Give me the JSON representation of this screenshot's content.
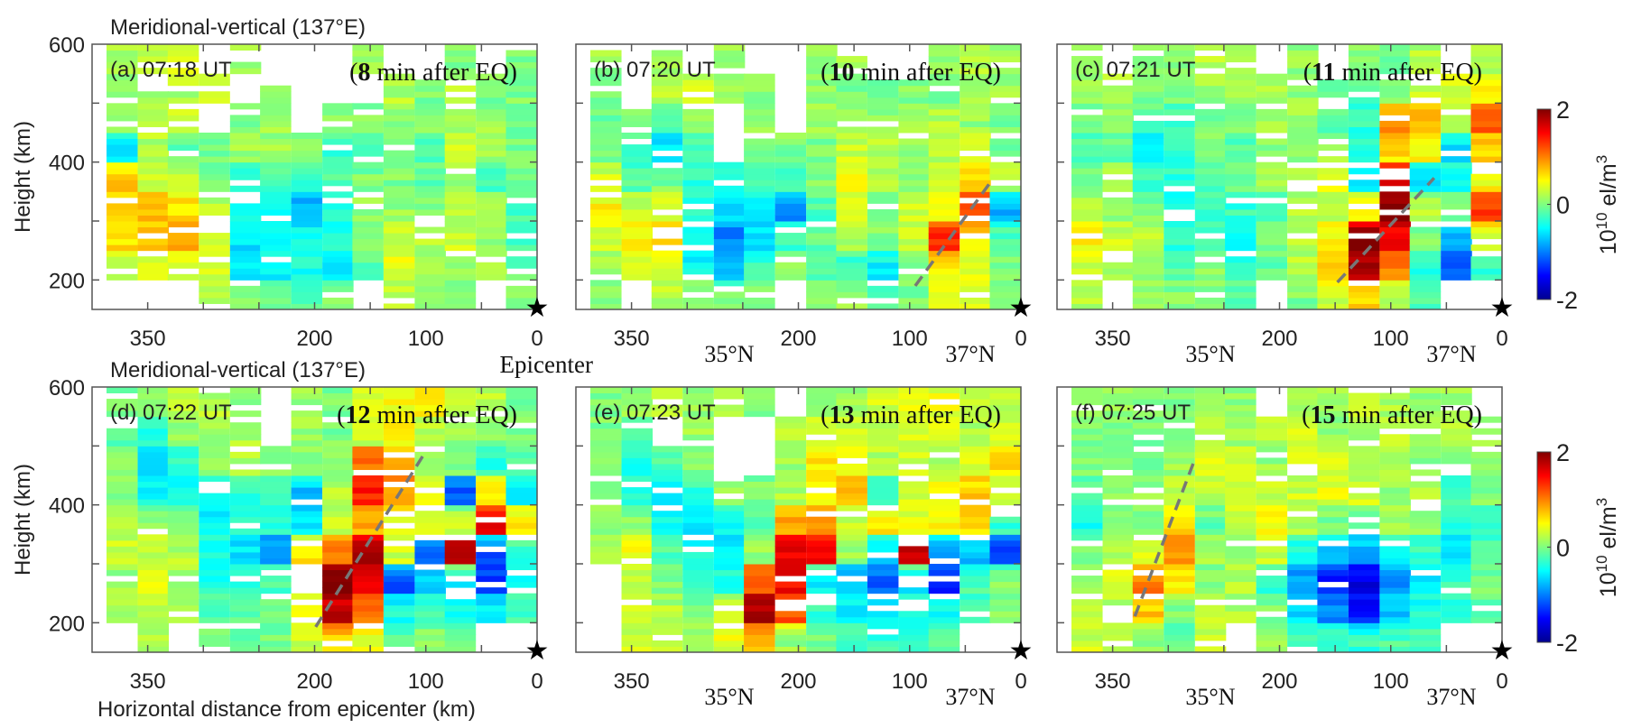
{
  "figure": {
    "row_titles": [
      "Meridional-vertical (137°E)",
      "Meridional-vertical (137°E)"
    ],
    "ylabel": "Height (km)",
    "xlabel": "Horizontal distance from epicenter (km)",
    "epicenter_label": "Epicenter",
    "lat_labels": [
      "35°N",
      "37°N"
    ],
    "colorbar": {
      "ticks": [
        "2",
        "0",
        "-2"
      ],
      "unit_base": "10",
      "unit_exp": "10",
      "unit_text": " el/m",
      "unit_sup": "3",
      "range": [
        -2,
        2
      ],
      "colormap": "jet"
    },
    "x_tick_labels": [
      "350",
      "200",
      "100",
      "0"
    ],
    "y_tick_labels": [
      "600",
      "400",
      "200"
    ],
    "epicenter_marker": "star-icon"
  },
  "chart_data": [
    {
      "type": "heatmap",
      "panel": "(a)",
      "time": "07:18 UT",
      "elapsed_bold": "8",
      "elapsed_rest": " min after EQ)",
      "xlim": [
        400,
        0
      ],
      "ylim": [
        150,
        600
      ],
      "x_bin_starts_km": [
        387,
        359,
        332,
        304,
        276,
        249,
        221,
        193,
        166,
        138,
        110,
        83,
        55,
        28
      ],
      "y_bins_km": [
        150,
        200,
        250,
        300,
        350,
        400,
        450,
        500,
        550
      ],
      "values": [
        [
          null,
          null,
          null,
          0.2,
          0,
          -0.1,
          -0.2,
          0,
          null,
          0.2,
          0.1,
          0,
          null,
          0
        ],
        [
          0.3,
          0.3,
          0.4,
          0.3,
          -0.5,
          -0.5,
          -0.4,
          -0.6,
          -0.2,
          0.4,
          0.2,
          0.1,
          0.1,
          -0.1
        ],
        [
          0.6,
          0.7,
          0.9,
          0.4,
          -0.6,
          -0.5,
          -0.5,
          -0.4,
          0,
          0.3,
          0.2,
          0.3,
          0.1,
          -0.2
        ],
        [
          0.6,
          0.8,
          0.6,
          0.2,
          -0.4,
          -0.5,
          -0.8,
          -0.3,
          0.1,
          0.1,
          0,
          0.2,
          0.1,
          -0.2
        ],
        [
          0.7,
          0.3,
          0.3,
          0,
          -0.3,
          -0.2,
          -0.4,
          -0.2,
          0,
          0,
          -0.1,
          0.1,
          -0.2,
          -0.1
        ],
        [
          -0.5,
          0.2,
          -0.1,
          0,
          0.1,
          0.1,
          0.1,
          -0.3,
          -0.3,
          0.1,
          -0.2,
          0.3,
          0.1,
          0
        ],
        [
          0,
          0.3,
          0.3,
          null,
          0,
          0.1,
          null,
          0.1,
          0,
          0.1,
          0,
          0.1,
          0.1,
          0
        ],
        [
          0,
          0.2,
          0.2,
          0.3,
          null,
          0,
          null,
          null,
          null,
          0.2,
          0,
          0.2,
          0,
          0
        ],
        [
          0.2,
          0.2,
          0.3,
          null,
          0.1,
          null,
          null,
          null,
          0.1,
          null,
          null,
          0,
          null,
          0
        ]
      ],
      "dashed_line": null
    },
    {
      "type": "heatmap",
      "panel": "(b)",
      "time": "07:20 UT",
      "elapsed_bold": "10",
      "elapsed_rest": " min after EQ)",
      "xlim": [
        400,
        0
      ],
      "ylim": [
        150,
        600
      ],
      "values": [
        [
          0.1,
          null,
          0.2,
          0.1,
          0,
          0,
          null,
          0,
          0.1,
          -0.1,
          0,
          0.3,
          0.3,
          0
        ],
        [
          0.1,
          0.4,
          0.4,
          -0.5,
          -0.7,
          -0.3,
          0,
          -0.2,
          -0.3,
          -0.5,
          0,
          0.5,
          0.4,
          0
        ],
        [
          0.3,
          0.5,
          0.7,
          -0.4,
          -1.0,
          -0.6,
          -0.3,
          -0.1,
          0.2,
          0,
          0.3,
          1.3,
          0.6,
          -0.2
        ],
        [
          0.5,
          0.3,
          0.4,
          -0.3,
          -0.6,
          -0.5,
          -0.9,
          -0.2,
          0.3,
          0,
          0.3,
          0.5,
          1.3,
          -0.8
        ],
        [
          0.3,
          -0.2,
          0,
          -0.3,
          -0.4,
          -0.2,
          -0.3,
          0,
          0.5,
          0.2,
          0,
          0.4,
          0.6,
          0.2
        ],
        [
          0,
          -0.3,
          -0.6,
          -0.2,
          null,
          -0.1,
          0,
          0,
          0.3,
          0.2,
          0.1,
          0.2,
          0.3,
          0
        ],
        [
          -0.1,
          0,
          -0.1,
          0.1,
          null,
          0.1,
          null,
          0.1,
          0.1,
          0.1,
          0.1,
          0.2,
          0.1,
          0
        ],
        [
          0,
          null,
          0.2,
          0.3,
          0.1,
          0,
          null,
          0.1,
          0,
          0,
          0,
          0,
          0.1,
          0.1
        ],
        [
          0.1,
          null,
          0.2,
          null,
          0.1,
          null,
          null,
          0.1,
          0.1,
          null,
          null,
          0.1,
          0.2,
          0.1
        ]
      ],
      "dashed_line": [
        [
          95,
          190
        ],
        [
          25,
          372
        ]
      ]
    },
    {
      "type": "heatmap",
      "panel": "(c)",
      "time": "07:21 UT",
      "elapsed_bold": "11",
      "elapsed_rest": " min after EQ)",
      "xlim": [
        400,
        0
      ],
      "ylim": [
        150,
        600
      ],
      "values": [
        [
          0.2,
          null,
          0.1,
          0,
          0,
          -0.1,
          null,
          0,
          0.3,
          0.7,
          0.2,
          -0.2,
          null,
          null
        ],
        [
          0.3,
          0.2,
          0.1,
          -0.2,
          0.1,
          -0.3,
          -0.1,
          0.2,
          0.8,
          1.8,
          1.0,
          -0.4,
          -1.2,
          -0.3
        ],
        [
          0.5,
          0.3,
          0.2,
          -0.3,
          -0.2,
          -0.5,
          0,
          0.2,
          0.5,
          2.0,
          1.5,
          0,
          -0.8,
          0.3
        ],
        [
          0.2,
          0.1,
          0,
          -0.5,
          -0.3,
          -0.3,
          -0.2,
          0.2,
          0.3,
          0.6,
          2.0,
          0.3,
          0,
          1.3
        ],
        [
          0,
          0.2,
          -0.3,
          -0.3,
          -0.2,
          0,
          0.1,
          0.1,
          0.4,
          -0.6,
          1.6,
          -0.6,
          -0.4,
          0.5
        ],
        [
          -0.2,
          -0.1,
          -0.5,
          -0.3,
          0,
          -0.2,
          0,
          0.1,
          0.1,
          -0.3,
          0.6,
          0.5,
          -0.6,
          0.7
        ],
        [
          0,
          0,
          -0.2,
          -0.2,
          0,
          0,
          0.1,
          0.1,
          -0.1,
          -0.3,
          1.0,
          0.8,
          0.3,
          1.1
        ],
        [
          0.1,
          0.2,
          0,
          0,
          0.1,
          0.1,
          0.2,
          0.1,
          0,
          -0.2,
          0.1,
          0.3,
          0.3,
          0.5
        ],
        [
          0.1,
          null,
          0,
          0.1,
          0.2,
          0.2,
          null,
          0.1,
          null,
          0,
          0,
          0.2,
          null,
          0.2
        ]
      ],
      "dashed_line": [
        [
          148,
          196
        ],
        [
          61,
          373
        ]
      ]
    },
    {
      "type": "heatmap",
      "panel": "(d)",
      "time": "07:22 UT",
      "elapsed_bold": "12",
      "elapsed_rest": " min after EQ)",
      "xlim": [
        400,
        0
      ],
      "ylim": [
        150,
        600
      ],
      "values": [
        [
          null,
          0.2,
          null,
          0.1,
          -0.1,
          0,
          0.3,
          0.7,
          0.4,
          -0.2,
          0,
          -0.1,
          null,
          null
        ],
        [
          0.2,
          0.3,
          0.2,
          -0.2,
          -0.1,
          -0.1,
          0.5,
          1.7,
          1.0,
          -0.4,
          -0.2,
          -0.5,
          -0.6,
          -0.2
        ],
        [
          0.1,
          0.4,
          0.1,
          -0.4,
          -0.3,
          -0.2,
          null,
          2.0,
          1.5,
          -1.2,
          -0.6,
          -0.7,
          -1.3,
          -0.5
        ],
        [
          0.3,
          0.3,
          0.2,
          -0.4,
          -0.6,
          -1.0,
          0.6,
          1.0,
          1.8,
          0.3,
          -1.0,
          1.9,
          -1.2,
          -0.3
        ],
        [
          0.2,
          0.1,
          0,
          -0.5,
          -0.4,
          -0.3,
          -0.6,
          0.3,
          0.8,
          0.5,
          0.3,
          0.3,
          1.5,
          0.6
        ],
        [
          0,
          -0.5,
          -0.4,
          -0.4,
          -0.3,
          -0.2,
          -0.7,
          0.2,
          1.4,
          0.9,
          0.4,
          -1.2,
          0.6,
          -0.6
        ],
        [
          0,
          -0.6,
          -0.3,
          0.1,
          0.2,
          0.1,
          0,
          0.1,
          1.1,
          0.8,
          0.2,
          0,
          -0.3,
          -0.1
        ],
        [
          -0.1,
          -0.3,
          0.1,
          0.1,
          0.2,
          null,
          0.1,
          0,
          0.3,
          0.5,
          0.2,
          0.1,
          0,
          0
        ],
        [
          0,
          0,
          0.2,
          0.2,
          0,
          null,
          0.1,
          0,
          0.3,
          0.5,
          0.6,
          0.3,
          0.2,
          0
        ]
      ],
      "dashed_line": [
        [
          199,
          193
        ],
        [
          100,
          491
        ]
      ]
    },
    {
      "type": "heatmap",
      "panel": "(e)",
      "time": "07:23 UT",
      "elapsed_bold": "13",
      "elapsed_rest": " min after EQ)",
      "xlim": [
        400,
        0
      ],
      "ylim": [
        150,
        600
      ],
      "values": [
        [
          null,
          0.3,
          0.3,
          0.2,
          0.4,
          0.7,
          0.1,
          0,
          -0.2,
          -0.3,
          -0.3,
          -0.2,
          null,
          null
        ],
        [
          null,
          0.4,
          0.2,
          0,
          0.4,
          1.8,
          1.2,
          -0.3,
          -0.5,
          -0.6,
          -0.4,
          -0.5,
          -0.3,
          0
        ],
        [
          null,
          0.3,
          0,
          -0.3,
          -0.4,
          1.2,
          1.5,
          -0.5,
          -0.8,
          -1.1,
          -0.7,
          -1.3,
          -0.2,
          0
        ],
        [
          0.2,
          0.5,
          -0.2,
          -0.4,
          -0.6,
          0.1,
          1.6,
          1.5,
          0.1,
          -0.6,
          1.7,
          -0.8,
          -0.7,
          -1.2
        ],
        [
          0.1,
          0,
          -0.4,
          -0.6,
          -0.4,
          -0.2,
          0.8,
          0.9,
          0.3,
          0.6,
          0.4,
          0.5,
          0.6,
          -0.3
        ],
        [
          0,
          -0.4,
          -0.5,
          -0.3,
          0.1,
          0,
          0.2,
          0.5,
          0.8,
          -0.3,
          0.3,
          0.5,
          0.7,
          0.2
        ],
        [
          0.1,
          -0.4,
          -0.2,
          0,
          null,
          null,
          0.1,
          0.6,
          0.4,
          0.2,
          0.3,
          0.2,
          0.4,
          0.6
        ],
        [
          0,
          -0.2,
          null,
          0.1,
          null,
          null,
          0.2,
          0.3,
          0.3,
          0.3,
          0.3,
          0.3,
          0.2,
          0.3
        ],
        [
          0,
          0.1,
          0.2,
          0.1,
          0.2,
          0,
          null,
          0.1,
          0.1,
          0.3,
          0.4,
          0.4,
          0.2,
          0.2
        ]
      ],
      "dashed_line": null
    },
    {
      "type": "heatmap",
      "panel": "(f)",
      "time": "07:25 UT",
      "elapsed_bold": "15",
      "elapsed_rest": " min after EQ)",
      "xlim": [
        400,
        0
      ],
      "ylim": [
        150,
        600
      ],
      "values": [
        [
          0.3,
          0.3,
          0.1,
          -0.1,
          0.3,
          null,
          0.1,
          -0.2,
          -0.2,
          -0.3,
          -0.2,
          -0.2,
          null,
          null
        ],
        [
          0.3,
          0.2,
          0.7,
          0,
          0.3,
          0.2,
          0,
          -0.6,
          -1.0,
          -1.4,
          -0.7,
          -0.4,
          -0.3,
          -0.1
        ],
        [
          0.1,
          0.4,
          1.0,
          0.6,
          0,
          0.2,
          -0.3,
          -0.9,
          -1.4,
          -1.6,
          -0.9,
          -0.6,
          -0.3,
          0
        ],
        [
          0,
          0.2,
          0.4,
          0.9,
          0.1,
          0,
          0.3,
          -0.4,
          -0.7,
          -0.8,
          -0.5,
          -0.3,
          -0.6,
          -0.2
        ],
        [
          -0.4,
          0.1,
          0,
          0.6,
          -0.1,
          0.3,
          0.5,
          0.2,
          0,
          -0.1,
          0.2,
          0.1,
          -0.3,
          -0.3
        ],
        [
          -0.2,
          0,
          0.1,
          0.3,
          0.2,
          0.3,
          0.3,
          0.3,
          0.4,
          0.3,
          0.1,
          0.3,
          -0.3,
          0
        ],
        [
          0,
          0,
          0,
          0.1,
          0.5,
          0.3,
          0.1,
          0.3,
          0.3,
          0.2,
          0.2,
          0,
          0.1,
          0
        ],
        [
          0,
          0,
          0,
          0.1,
          0.2,
          0.1,
          0.2,
          0.3,
          0.1,
          0.1,
          0.3,
          0.1,
          0.2,
          0.1
        ],
        [
          0.1,
          0.1,
          0,
          0,
          0.1,
          0.1,
          null,
          0.1,
          0.1,
          0.3,
          0.2,
          0.1,
          0.1,
          null
        ]
      ],
      "dashed_line": [
        [
          330,
          211
        ],
        [
          277,
          473
        ]
      ]
    }
  ]
}
